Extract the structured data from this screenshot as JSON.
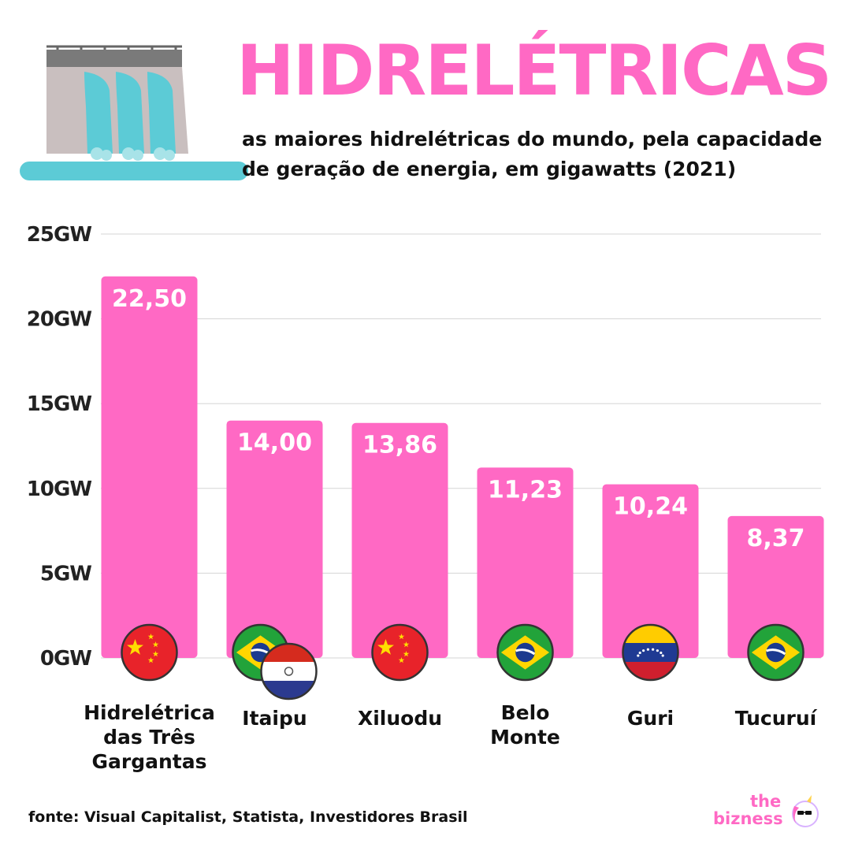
{
  "title": "HIDRELÉTRICAS",
  "subtitle": "as maiores hidrelétricas do mundo, pela capacidade de geração de energia, em gigawatts (2021)",
  "source": "fonte: Visual Capitalist, Statista, Investidores Brasil",
  "brand": {
    "line1": "the",
    "line2": "bizness"
  },
  "colors": {
    "bar": "#ff69c4",
    "title": "#ff69c4",
    "grid": "#d5d5d5",
    "text": "#111111"
  },
  "chart_data": {
    "type": "bar",
    "categories": [
      "Hidrelétrica das Três Gargantas",
      "Itaipu",
      "Xiluodu",
      "Belo Monte",
      "Guri",
      "Tucuruí"
    ],
    "category_lines": [
      [
        "Hidrelétrica",
        "das Três",
        "Gargantas"
      ],
      [
        "Itaipu"
      ],
      [
        "Xiluodu"
      ],
      [
        "Belo",
        "Monte"
      ],
      [
        "Guri"
      ],
      [
        "Tucuruí"
      ]
    ],
    "values": [
      22.5,
      14.0,
      13.86,
      11.23,
      10.24,
      8.37
    ],
    "value_labels": [
      "22,50",
      "14,00",
      "13,86",
      "11,23",
      "10,24",
      "8,37"
    ],
    "flags": [
      [
        "china"
      ],
      [
        "brazil",
        "paraguay"
      ],
      [
        "china"
      ],
      [
        "brazil"
      ],
      [
        "venezuela"
      ],
      [
        "brazil"
      ]
    ],
    "yticks": [
      0,
      5,
      10,
      15,
      20,
      25
    ],
    "ytick_labels": [
      "0GW",
      "5GW",
      "10GW",
      "15GW",
      "20GW",
      "25GW"
    ],
    "ylim": [
      0,
      25
    ],
    "grid": true
  }
}
